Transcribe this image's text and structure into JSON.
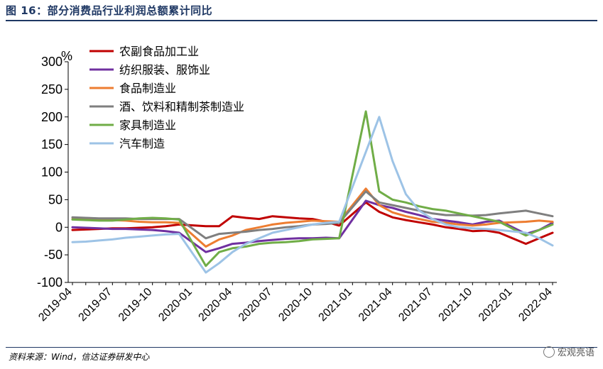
{
  "header": {
    "title": "图 16：部分消费品行业利润总额累计同比",
    "source": "资料来源：Wind，信达证券研发中心",
    "watermark": "宏观亮语"
  },
  "chart_data": {
    "type": "line",
    "title": "图 16：部分消费品行业利润总额累计同比",
    "ylabel": "%",
    "ylim": [
      -100,
      300
    ],
    "yticks": [
      -100,
      -50,
      0,
      50,
      100,
      150,
      200,
      250,
      300
    ],
    "xticks": [
      "2019-04",
      "2019-07",
      "2019-10",
      "2020-01",
      "2020-04",
      "2020-07",
      "2020-10",
      "2021-01",
      "2021-04",
      "2021-07",
      "2021-10",
      "2022-01",
      "2022-04"
    ],
    "x": [
      "2019-04",
      "2019-05",
      "2019-06",
      "2019-07",
      "2019-08",
      "2019-09",
      "2019-10",
      "2019-11",
      "2019-12",
      "2020-01",
      "2020-02",
      "2020-03",
      "2020-04",
      "2020-05",
      "2020-06",
      "2020-07",
      "2020-08",
      "2020-09",
      "2020-10",
      "2020-11",
      "2020-12",
      "2021-01",
      "2021-02",
      "2021-03",
      "2021-04",
      "2021-05",
      "2021-06",
      "2021-07",
      "2021-08",
      "2021-09",
      "2021-10",
      "2021-11",
      "2021-12",
      "2022-01",
      "2022-02",
      "2022-03",
      "2022-04"
    ],
    "legend_position": "top-left",
    "grid": false,
    "series": [
      {
        "name": "农副食品加工业",
        "color": "#c00000",
        "values": [
          -5,
          -4,
          -3,
          -2,
          -2,
          -1,
          0,
          2,
          5,
          null,
          2,
          2,
          20,
          17,
          15,
          20,
          18,
          16,
          15,
          10,
          3,
          null,
          45,
          28,
          18,
          13,
          9,
          5,
          0,
          -3,
          -7,
          -6,
          -10,
          null,
          -30,
          -20,
          -10
        ]
      },
      {
        "name": "纺织服装、服饰业",
        "color": "#7030a0",
        "values": [
          0,
          -1,
          -2,
          -3,
          -3,
          -4,
          -5,
          -7,
          -10,
          null,
          -45,
          -38,
          -30,
          -28,
          -25,
          -23,
          -21,
          -20,
          -20,
          -19,
          -20,
          null,
          48,
          40,
          35,
          28,
          22,
          15,
          12,
          9,
          5,
          10,
          12,
          null,
          -12,
          -5,
          8
        ]
      },
      {
        "name": "食品制造业",
        "color": "#ed7d31",
        "values": [
          15,
          14,
          13,
          13,
          12,
          10,
          9,
          9,
          8,
          null,
          -35,
          -22,
          -15,
          -5,
          0,
          5,
          8,
          10,
          12,
          11,
          10,
          null,
          70,
          40,
          27,
          20,
          15,
          10,
          8,
          5,
          3,
          5,
          8,
          null,
          10,
          12,
          10
        ]
      },
      {
        "name": "酒、饮料和精制茶制造业",
        "color": "#7f7f7f",
        "values": [
          18,
          17,
          16,
          16,
          16,
          15,
          15,
          15,
          15,
          null,
          -20,
          -12,
          -10,
          -8,
          -5,
          -3,
          0,
          2,
          5,
          6,
          8,
          null,
          65,
          45,
          40,
          35,
          30,
          25,
          22,
          22,
          21,
          22,
          25,
          null,
          30,
          25,
          20
        ]
      },
      {
        "name": "家具制造业",
        "color": "#70ad47",
        "values": [
          14,
          13,
          12,
          12,
          14,
          16,
          17,
          16,
          14,
          null,
          -70,
          -45,
          -38,
          -35,
          -30,
          -28,
          -27,
          -25,
          -22,
          -21,
          -20,
          null,
          210,
          65,
          50,
          45,
          38,
          33,
          30,
          25,
          20,
          15,
          10,
          null,
          -15,
          -5,
          5
        ]
      },
      {
        "name": "汽车制造",
        "color": "#9dc3e6",
        "values": [
          -27,
          -26,
          -24,
          -22,
          -19,
          -17,
          -15,
          -13,
          -12,
          null,
          -82,
          -65,
          -45,
          -30,
          -20,
          -10,
          -5,
          0,
          5,
          8,
          10,
          null,
          null,
          200,
          120,
          60,
          30,
          15,
          5,
          0,
          -2,
          -3,
          -5,
          null,
          -10,
          -20,
          -33
        ]
      }
    ]
  }
}
